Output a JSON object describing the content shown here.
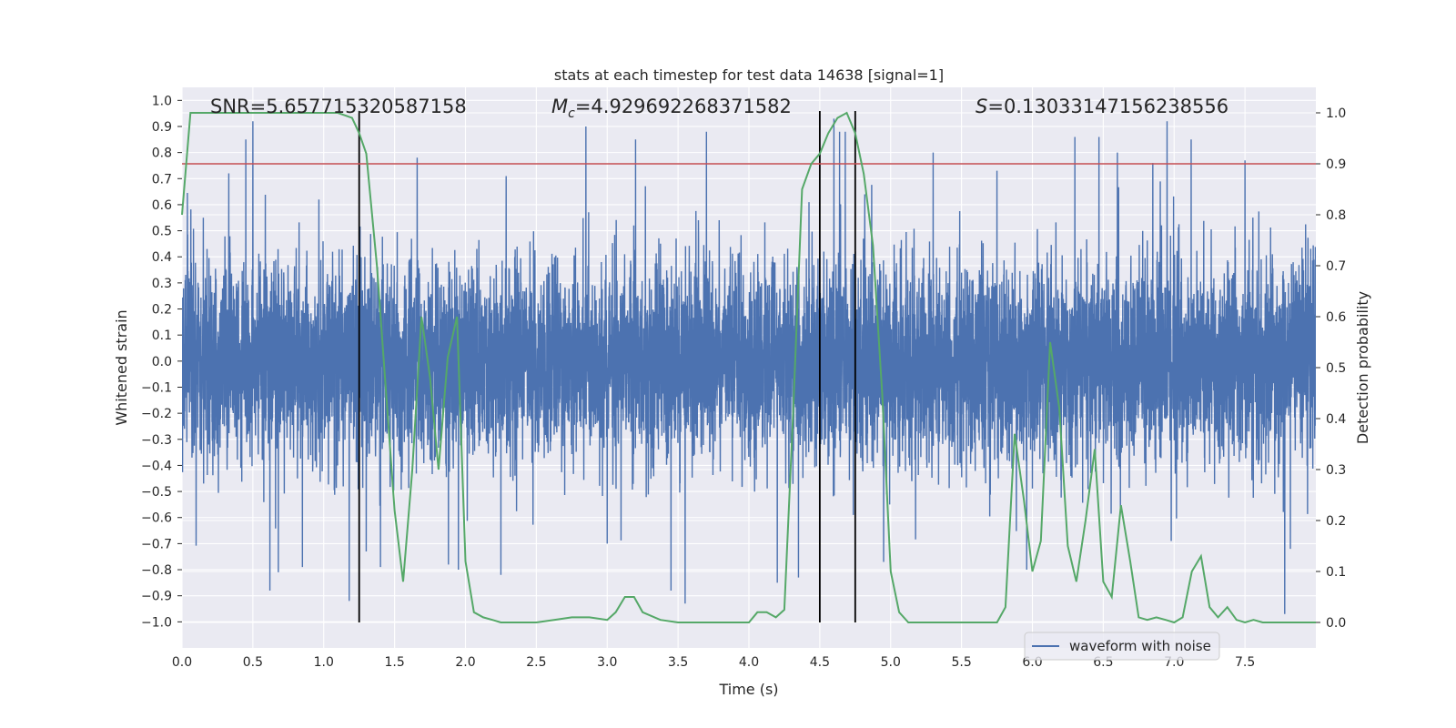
{
  "chart_data": {
    "type": "line",
    "title": "stats at each timestep for test data 14638 [signal=1]",
    "xlabel": "Time (s)",
    "ylabel": "Whitened strain",
    "ylabel_right": "Detection probability",
    "xlim": [
      0.0,
      8.0
    ],
    "ylim": [
      -1.1,
      1.05
    ],
    "ylim_right": [
      -0.05,
      1.05
    ],
    "x_ticks": [
      0.0,
      0.5,
      1.0,
      1.5,
      2.0,
      2.5,
      3.0,
      3.5,
      4.0,
      4.5,
      5.0,
      5.5,
      6.0,
      6.5,
      7.0,
      7.5
    ],
    "x_tick_labels": [
      "0.0",
      "0.5",
      "1.0",
      "1.5",
      "2.0",
      "2.5",
      "3.0",
      "3.5",
      "4.0",
      "4.5",
      "5.0",
      "5.5",
      "6.0",
      "6.5",
      "7.0",
      "7.5"
    ],
    "y_ticks": [
      1.0,
      0.9,
      0.8,
      0.7,
      0.6,
      0.5,
      0.4,
      0.3,
      0.2,
      0.1,
      0.0,
      -0.1,
      -0.2,
      -0.3,
      -0.4,
      -0.5,
      -0.6,
      -0.7,
      -0.8,
      -0.9,
      -1.0
    ],
    "y_tick_labels": [
      "1.0",
      "0.9",
      "0.8",
      "0.7",
      "0.6",
      "0.5",
      "0.4",
      "0.3",
      "0.2",
      "0.1",
      "0.0",
      "−0.1",
      "−0.2",
      "−0.3",
      "−0.4",
      "−0.5",
      "−0.6",
      "−0.7",
      "−0.8",
      "−0.9",
      "−1.0"
    ],
    "y_right_ticks": [
      1.0,
      0.9,
      0.8,
      0.7,
      0.6,
      0.5,
      0.4,
      0.3,
      0.2,
      0.1,
      0.0
    ],
    "y_right_tick_labels": [
      "1.0",
      "0.9",
      "0.8",
      "0.7",
      "0.6",
      "0.5",
      "0.4",
      "0.3",
      "0.2",
      "0.1",
      "0.0"
    ],
    "grid": true,
    "legend_position": "bottom-right",
    "legend": [
      "waveform with noise"
    ],
    "annotations": {
      "snr": {
        "prefix": "SNR=",
        "value": "5.657715320587158"
      },
      "mc": {
        "symbol": "M",
        "subscript": "c",
        "value": "=4.929692268371582"
      },
      "s": {
        "symbol": "S",
        "value": "=0.13033147156238556"
      }
    },
    "threshold": {
      "value": 0.9,
      "axis": "right",
      "color": "#c44e52"
    },
    "vertical_lines": [
      1.25,
      4.5,
      4.75
    ],
    "series": [
      {
        "name": "waveform with noise",
        "axis": "left",
        "color": "#4c72b0",
        "kind": "noise",
        "samples": 8192,
        "core_std": 0.19,
        "max_abs": 0.98,
        "spikes": [
          {
            "x": 0.15,
            "y": 0.55
          },
          {
            "x": 0.33,
            "y": 0.72
          },
          {
            "x": 0.45,
            "y": 0.85
          },
          {
            "x": 0.5,
            "y": 0.92
          },
          {
            "x": 0.62,
            "y": -0.88
          },
          {
            "x": 0.68,
            "y": -0.81
          },
          {
            "x": 0.85,
            "y": -0.79
          },
          {
            "x": 1.18,
            "y": -0.92
          },
          {
            "x": 1.3,
            "y": -0.73
          },
          {
            "x": 1.4,
            "y": -0.79
          },
          {
            "x": 1.88,
            "y": -0.78
          },
          {
            "x": 1.95,
            "y": -0.8
          },
          {
            "x": 2.25,
            "y": -0.82
          },
          {
            "x": 2.85,
            "y": 0.9
          },
          {
            "x": 3.0,
            "y": -0.7
          },
          {
            "x": 3.2,
            "y": 0.85
          },
          {
            "x": 3.45,
            "y": -0.88
          },
          {
            "x": 3.55,
            "y": -0.93
          },
          {
            "x": 3.7,
            "y": 0.88
          },
          {
            "x": 4.2,
            "y": -0.85
          },
          {
            "x": 4.35,
            "y": -0.83
          },
          {
            "x": 4.6,
            "y": 0.93
          },
          {
            "x": 4.64,
            "y": 0.88
          },
          {
            "x": 4.68,
            "y": 0.88
          },
          {
            "x": 4.95,
            "y": -0.77
          },
          {
            "x": 5.3,
            "y": 0.8
          },
          {
            "x": 5.75,
            "y": 0.73
          },
          {
            "x": 5.96,
            "y": -0.8
          },
          {
            "x": 6.3,
            "y": 0.86
          },
          {
            "x": 6.47,
            "y": 0.86
          },
          {
            "x": 6.6,
            "y": 0.8
          },
          {
            "x": 6.85,
            "y": 0.76
          },
          {
            "x": 6.95,
            "y": 0.92
          },
          {
            "x": 7.12,
            "y": 0.85
          },
          {
            "x": 7.5,
            "y": 0.77
          },
          {
            "x": 7.78,
            "y": -0.97
          },
          {
            "x": 7.82,
            "y": -0.72
          }
        ]
      },
      {
        "name": "Detection probability",
        "axis": "right",
        "color": "#55a868",
        "x": [
          0.0,
          0.06,
          0.12,
          0.25,
          0.5,
          0.75,
          1.0,
          1.1,
          1.2,
          1.25,
          1.3,
          1.375,
          1.44,
          1.5,
          1.56,
          1.625,
          1.69,
          1.75,
          1.81,
          1.875,
          1.94,
          2.0,
          2.06,
          2.125,
          2.19,
          2.25,
          2.375,
          2.5,
          2.625,
          2.75,
          2.875,
          3.0,
          3.06,
          3.125,
          3.19,
          3.25,
          3.375,
          3.5,
          3.625,
          3.75,
          3.875,
          4.0,
          4.06,
          4.125,
          4.19,
          4.25,
          4.31,
          4.375,
          4.44,
          4.5,
          4.56,
          4.625,
          4.69,
          4.75,
          4.81,
          4.875,
          4.94,
          5.0,
          5.06,
          5.125,
          5.25,
          5.5,
          5.75,
          5.81,
          5.875,
          5.94,
          6.0,
          6.06,
          6.125,
          6.19,
          6.25,
          6.31,
          6.375,
          6.44,
          6.5,
          6.56,
          6.625,
          6.69,
          6.75,
          6.81,
          6.875,
          6.94,
          7.0,
          7.06,
          7.125,
          7.19,
          7.25,
          7.31,
          7.375,
          7.44,
          7.5,
          7.56,
          7.625,
          7.75,
          8.0
        ],
        "values": [
          0.8,
          1.0,
          1.0,
          1.0,
          1.0,
          1.0,
          1.0,
          1.0,
          0.99,
          0.96,
          0.92,
          0.7,
          0.45,
          0.22,
          0.08,
          0.3,
          0.6,
          0.48,
          0.3,
          0.52,
          0.6,
          0.12,
          0.02,
          0.01,
          0.005,
          0.0,
          0.0,
          0.0,
          0.005,
          0.01,
          0.01,
          0.005,
          0.02,
          0.05,
          0.05,
          0.02,
          0.005,
          0.0,
          0.0,
          0.0,
          0.0,
          0.0,
          0.02,
          0.02,
          0.01,
          0.025,
          0.4,
          0.85,
          0.9,
          0.92,
          0.96,
          0.99,
          1.0,
          0.96,
          0.88,
          0.74,
          0.45,
          0.1,
          0.02,
          0.0,
          0.0,
          0.0,
          0.0,
          0.03,
          0.37,
          0.24,
          0.1,
          0.16,
          0.55,
          0.42,
          0.15,
          0.08,
          0.2,
          0.34,
          0.08,
          0.05,
          0.23,
          0.12,
          0.01,
          0.005,
          0.01,
          0.005,
          0.0,
          0.01,
          0.1,
          0.13,
          0.03,
          0.01,
          0.03,
          0.005,
          0.0,
          0.005,
          0.0,
          0.0,
          0.0
        ]
      }
    ]
  }
}
